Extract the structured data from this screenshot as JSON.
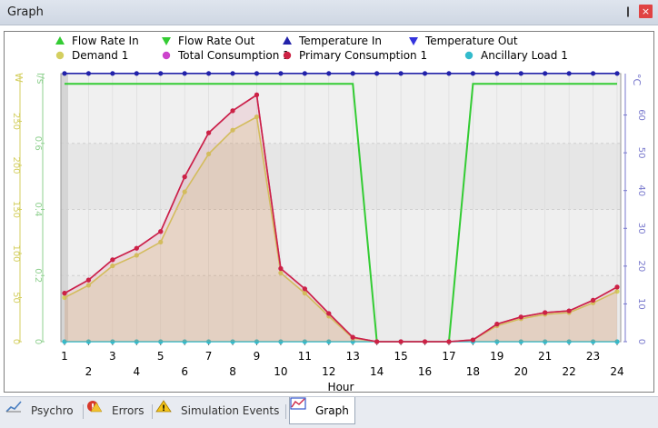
{
  "window": {
    "title": "Graph",
    "pin_glyph": "❙",
    "close_glyph": "×"
  },
  "colors": {
    "flow_in": "#33cc33",
    "flow_out": "#33cc33",
    "temp_in": "#2222aa",
    "temp_out": "#3333dd",
    "demand": "#d4cf60",
    "total": "#cc44cc",
    "primary": "#cc2244",
    "ancillary": "#33bbcc",
    "left_axis_green": "#8fd08f",
    "left_axis_yellow": "#d4cf60",
    "right_axis_blue": "#7777cc"
  },
  "tabs": [
    {
      "label": "Psychro",
      "icon": "chart-icon"
    },
    {
      "label": "Errors",
      "icon": "error-icon"
    },
    {
      "label": "Simulation Events",
      "icon": "warning-icon"
    },
    {
      "label": "Graph",
      "icon": "graph-icon",
      "active": true
    }
  ],
  "chart_data": {
    "type": "line",
    "xlabel": "Hour",
    "x": [
      1,
      2,
      3,
      4,
      5,
      6,
      7,
      8,
      9,
      10,
      11,
      12,
      13,
      14,
      15,
      16,
      17,
      18,
      19,
      20,
      21,
      22,
      23,
      24
    ],
    "xlim": [
      1,
      24
    ],
    "legend": [
      {
        "name": "Flow Rate In",
        "marker": "triangle-up",
        "color": "#33cc33"
      },
      {
        "name": "Flow Rate Out",
        "marker": "triangle-down",
        "color": "#33cc33"
      },
      {
        "name": "Temperature In",
        "marker": "triangle-up",
        "color": "#2222aa"
      },
      {
        "name": "Temperature Out",
        "marker": "triangle-down",
        "color": "#3333dd"
      },
      {
        "name": "Demand 1",
        "marker": "circle",
        "color": "#d4cf60"
      },
      {
        "name": "Total Consumption 1",
        "marker": "circle",
        "color": "#cc44cc"
      },
      {
        "name": "Primary Consumption 1",
        "marker": "circle",
        "color": "#cc2244"
      },
      {
        "name": "Ancillary Load 1",
        "marker": "circle",
        "color": "#33bbcc"
      }
    ],
    "axes": {
      "left_outer": {
        "unit": "W",
        "ticks": [
          0,
          50,
          100,
          150,
          200,
          250
        ],
        "range": [
          0,
          300
        ]
      },
      "left_inner": {
        "unit": "l/s",
        "ticks": [
          "0",
          "0.2",
          "0.4",
          "0.6"
        ],
        "tick_values": [
          0,
          0.2,
          0.4,
          0.6
        ],
        "range": [
          0,
          0.8
        ]
      },
      "right": {
        "unit": "°C",
        "ticks": [
          0,
          10,
          20,
          30,
          40,
          50,
          60
        ],
        "range": [
          0,
          70
        ]
      }
    },
    "series": [
      {
        "name": "Primary Consumption 1",
        "axis": "left_outer",
        "color": "#cc2244",
        "values": [
          55,
          70,
          93,
          106,
          125,
          187,
          237,
          262,
          280,
          83,
          60,
          32,
          5,
          0,
          0,
          0,
          0,
          2,
          20,
          28,
          33,
          35,
          47,
          62
        ]
      },
      {
        "name": "Total Consumption 1",
        "axis": "left_outer",
        "color": "#cc44cc",
        "values": [
          55,
          70,
          93,
          106,
          125,
          187,
          237,
          262,
          280,
          83,
          60,
          32,
          5,
          0,
          0,
          0,
          0,
          2,
          20,
          28,
          33,
          35,
          47,
          62
        ]
      },
      {
        "name": "Demand 1",
        "axis": "left_outer",
        "color": "#d4cf60",
        "values": [
          50,
          64,
          86,
          98,
          113,
          170,
          213,
          240,
          255,
          78,
          55,
          29,
          4,
          0,
          0,
          0,
          0,
          2,
          18,
          26,
          31,
          33,
          44,
          57
        ]
      },
      {
        "name": "Flow Rate In",
        "axis": "left_inner",
        "color": "#33cc33",
        "values": [
          0.78,
          0.78,
          0.78,
          0.78,
          0.78,
          0.78,
          0.78,
          0.78,
          0.78,
          0.78,
          0.78,
          0.78,
          0.78,
          0,
          0,
          0,
          0,
          0.78,
          0.78,
          0.78,
          0.78,
          0.78,
          0.78,
          0.78
        ]
      },
      {
        "name": "Temperature In",
        "axis": "right",
        "color": "#2222aa",
        "values": [
          71,
          71,
          71,
          71,
          71,
          71,
          71,
          71,
          71,
          71,
          71,
          71,
          71,
          71,
          71,
          71,
          71,
          71,
          71,
          71,
          71,
          71,
          71,
          71
        ]
      },
      {
        "name": "Ancillary Load 1",
        "axis": "left_outer",
        "color": "#33bbcc",
        "values": [
          0,
          0,
          0,
          0,
          0,
          0,
          0,
          0,
          0,
          0,
          0,
          0,
          0,
          0,
          0,
          0,
          0,
          0,
          0,
          0,
          0,
          0,
          0,
          0
        ]
      }
    ],
    "grid": true
  }
}
